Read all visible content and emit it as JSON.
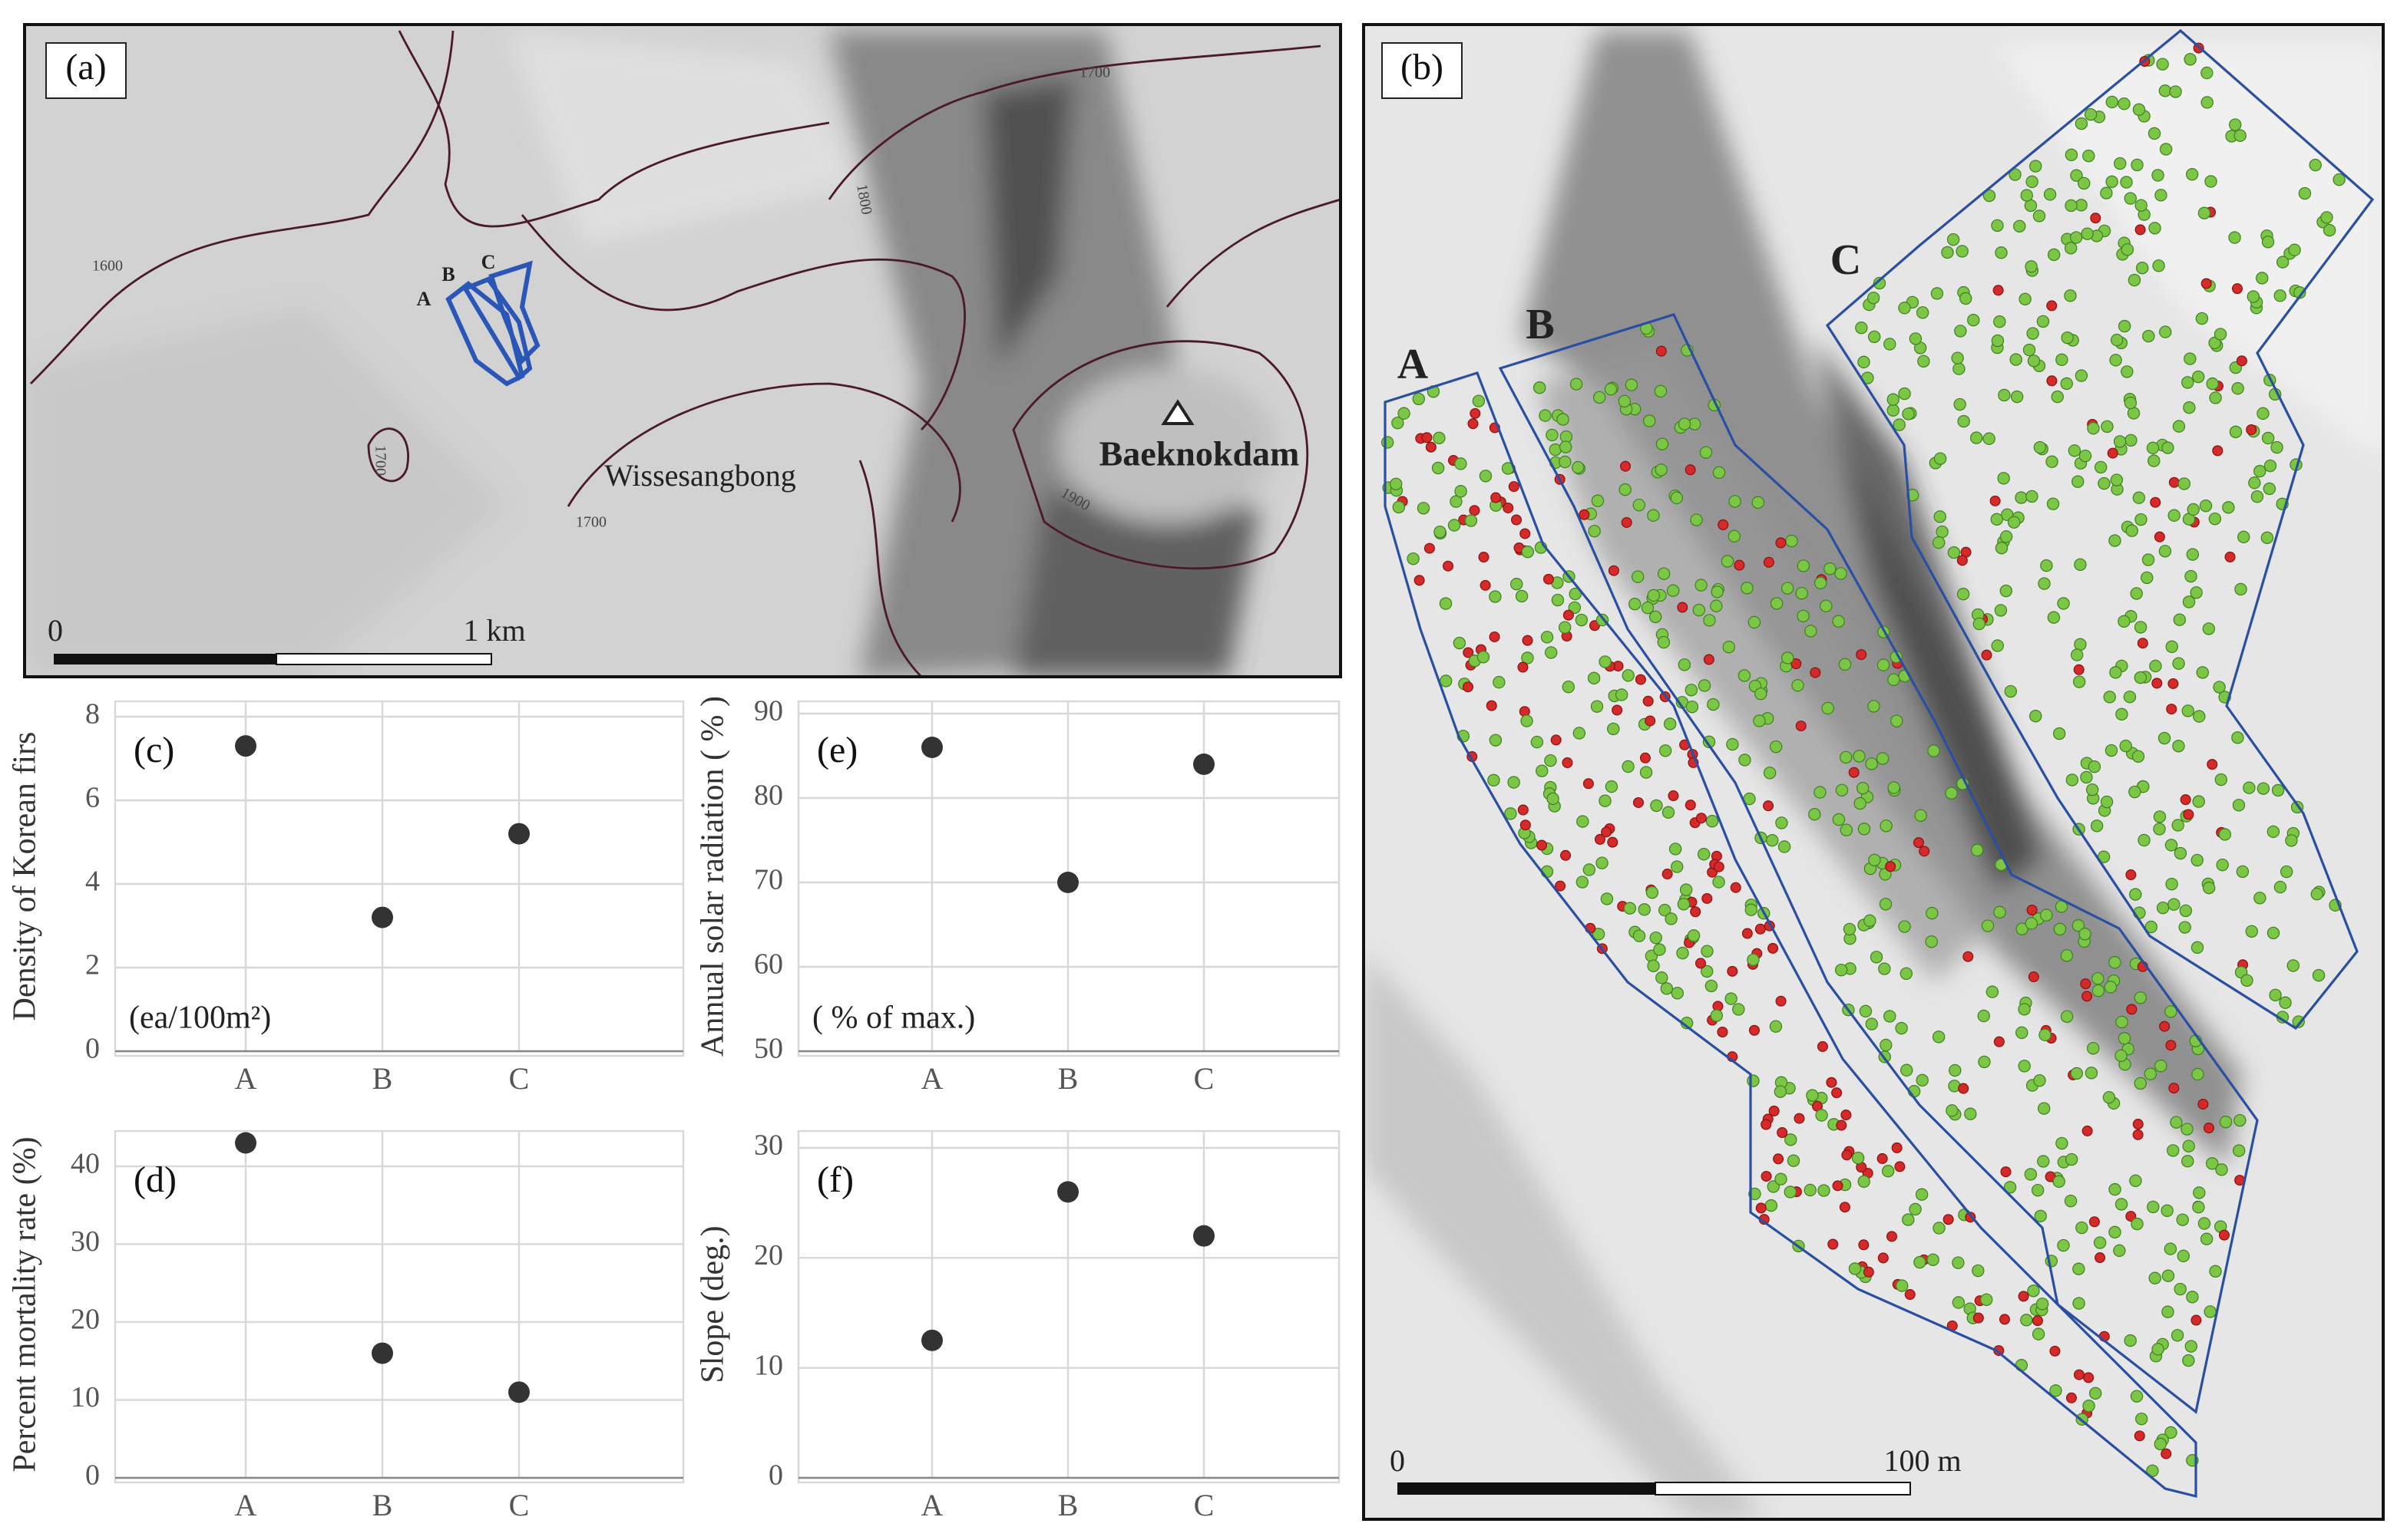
{
  "map_a": {
    "panel_label": "(a)",
    "site_labels": [
      "A",
      "B",
      "C"
    ],
    "places": [
      "Wissesangbong",
      "Baeknokdam"
    ],
    "contours": [
      "1600",
      "1700",
      "1700",
      "1700",
      "1800",
      "1900"
    ],
    "scale": [
      "0",
      "1 km"
    ]
  },
  "map_b": {
    "panel_label": "(b)",
    "site_labels": [
      "A",
      "B",
      "C"
    ],
    "scale": [
      "0",
      "100 m"
    ]
  },
  "chart_data": [
    {
      "type": "scatter",
      "panel_label": "(c)",
      "y_label": "Density of Korean firs",
      "annotation": "(ea/100m²)",
      "categories": [
        "A",
        "B",
        "C"
      ],
      "values": [
        7.3,
        3.2,
        5.2
      ],
      "color": "#333333",
      "ylim": [
        0,
        8
      ],
      "yticks": [
        0,
        2,
        4,
        6,
        8
      ],
      "grid": true
    },
    {
      "type": "scatter",
      "panel_label": "(d)",
      "y_label": "Percent mortality rate (%)",
      "categories": [
        "A",
        "B",
        "C"
      ],
      "values": [
        43,
        16,
        11
      ],
      "color": "#333333",
      "ylim": [
        0,
        45
      ],
      "yticks": [
        0,
        10,
        20,
        30,
        40
      ],
      "grid": true
    },
    {
      "type": "scatter",
      "panel_label": "(e)",
      "y_label": "Annual solar radiation ( % )",
      "annotation": "( % of max.)",
      "categories": [
        "A",
        "B",
        "C"
      ],
      "values": [
        86,
        70,
        84
      ],
      "color": "#333333",
      "ylim": [
        50,
        90
      ],
      "yticks": [
        50,
        60,
        70,
        80,
        90
      ],
      "grid": true
    },
    {
      "type": "scatter",
      "panel_label": "(f)",
      "y_label": "Slope (deg.)",
      "categories": [
        "A",
        "B",
        "C"
      ],
      "values": [
        12.5,
        26,
        22
      ],
      "color": "#333333",
      "ylim": [
        0,
        30
      ],
      "yticks": [
        0,
        10,
        20,
        30
      ],
      "grid": true
    }
  ]
}
